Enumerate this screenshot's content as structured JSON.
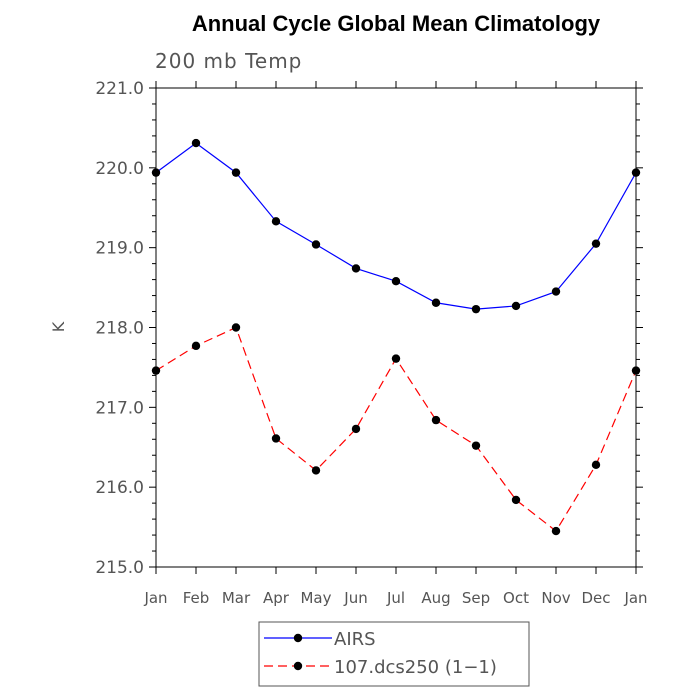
{
  "chart_data": {
    "type": "line",
    "title": "Annual Cycle Global Mean Climatology",
    "subtitle": "200 mb Temp",
    "xlabel": "",
    "ylabel": "K",
    "categories": [
      "Jan",
      "Feb",
      "Mar",
      "Apr",
      "May",
      "Jun",
      "Jul",
      "Aug",
      "Sep",
      "Oct",
      "Nov",
      "Dec",
      "Jan"
    ],
    "ylim": [
      215.0,
      221.0
    ],
    "yticks": [
      "215.0",
      "216.0",
      "217.0",
      "218.0",
      "219.0",
      "220.0",
      "221.0"
    ],
    "grid": false,
    "legend_position": "bottom",
    "series": [
      {
        "name": "AIRS",
        "color": "#0000ff",
        "dash": "solid",
        "values": [
          219.94,
          220.31,
          219.94,
          219.33,
          219.04,
          218.74,
          218.58,
          218.31,
          218.23,
          218.27,
          218.45,
          219.05,
          219.94
        ]
      },
      {
        "name": "107.dcs250 (1−1)",
        "color": "#ff0000",
        "dash": "dashed",
        "values": [
          217.46,
          217.77,
          218.0,
          216.61,
          216.21,
          216.73,
          217.61,
          216.84,
          216.52,
          215.84,
          215.45,
          216.28,
          217.46
        ]
      }
    ]
  }
}
